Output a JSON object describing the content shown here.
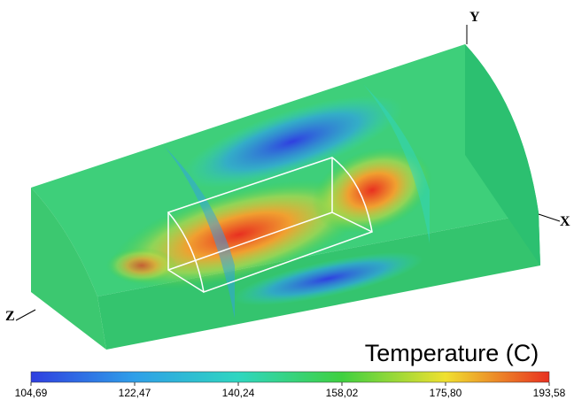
{
  "axes": {
    "y": "Y",
    "x": "X",
    "z": "Z"
  },
  "colorbar": {
    "title": "Temperature (C)",
    "ticks": [
      "104,69",
      "122,47",
      "140,24",
      "158,02",
      "175,80",
      "193,58"
    ]
  }
}
